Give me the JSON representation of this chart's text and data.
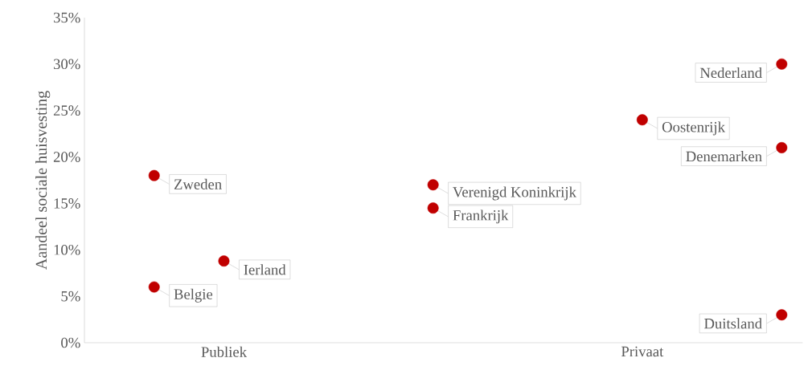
{
  "chart_data": {
    "type": "scatter",
    "ylabel": "Aandeel sociale huisvesting",
    "legend": false,
    "grid": false,
    "categories": [
      null,
      null,
      "Publiek",
      null,
      null,
      null,
      null,
      null,
      "Privaat",
      null,
      null
    ],
    "series": [
      {
        "name": "Zweden",
        "color": "#c00000",
        "values": [
          null,
          18,
          null,
          null,
          null,
          null,
          null,
          null,
          null,
          null,
          null
        ]
      },
      {
        "name": "Belgie",
        "color": "#c00000",
        "values": [
          null,
          6,
          null,
          null,
          null,
          null,
          null,
          null,
          null,
          null,
          null
        ]
      },
      {
        "name": "Ierland",
        "color": "#c00000",
        "values": [
          null,
          null,
          8.8,
          null,
          null,
          null,
          null,
          null,
          null,
          null,
          null
        ]
      },
      {
        "name": "Verenigd Koninkrijk",
        "color": "#c00000",
        "values": [
          null,
          null,
          null,
          null,
          null,
          17,
          null,
          null,
          null,
          null,
          null
        ]
      },
      {
        "name": "Frankrijk",
        "color": "#c00000",
        "values": [
          null,
          null,
          null,
          null,
          null,
          14.5,
          null,
          null,
          null,
          null,
          null
        ]
      },
      {
        "name": "Oostenrijk",
        "color": "#c00000",
        "values": [
          null,
          null,
          null,
          null,
          null,
          null,
          null,
          null,
          24,
          null,
          null
        ]
      },
      {
        "name": "Nederland",
        "color": "#c00000",
        "values": [
          null,
          null,
          null,
          null,
          null,
          null,
          null,
          null,
          null,
          null,
          30
        ]
      },
      {
        "name": "Denemarken",
        "color": "#c00000",
        "values": [
          null,
          null,
          null,
          null,
          null,
          null,
          null,
          null,
          null,
          null,
          21
        ]
      },
      {
        "name": "Duitsland",
        "color": "#c00000",
        "values": [
          null,
          null,
          null,
          null,
          null,
          null,
          null,
          null,
          null,
          null,
          3
        ]
      }
    ],
    "ylim": [
      0,
      35
    ],
    "yticks": [
      {
        "value": 0,
        "label": "0%"
      },
      {
        "value": 5,
        "label": "5%"
      },
      {
        "value": 10,
        "label": "10%"
      },
      {
        "value": 15,
        "label": "15%"
      },
      {
        "value": 20,
        "label": "20%"
      },
      {
        "value": 25,
        "label": "25%"
      },
      {
        "value": 30,
        "label": "30%"
      },
      {
        "value": 35,
        "label": "35%"
      }
    ]
  }
}
